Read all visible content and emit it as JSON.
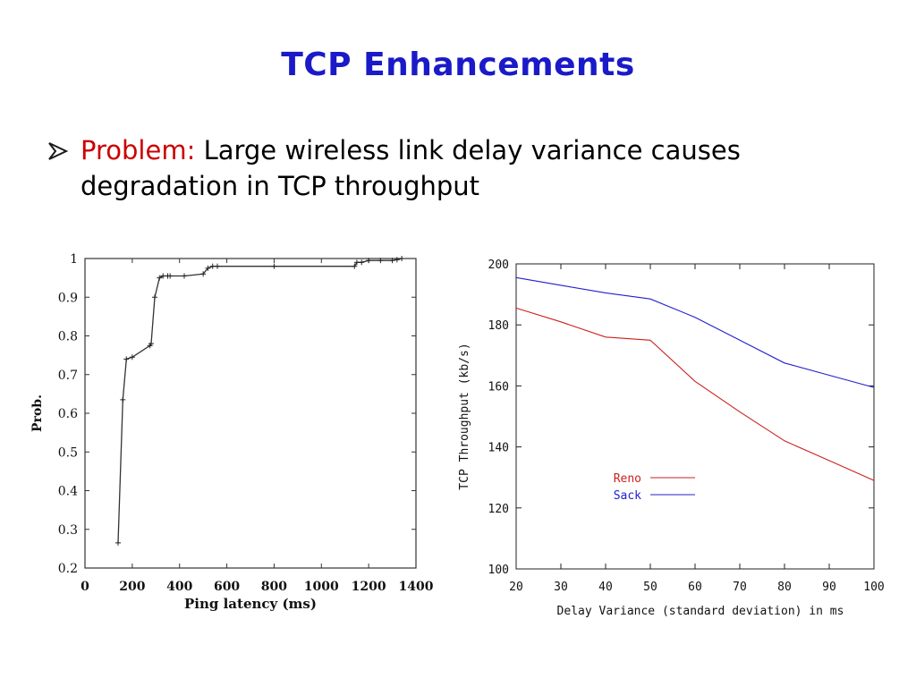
{
  "slide": {
    "title": "TCP Enhancements",
    "bullet": {
      "label": "Problem:",
      "text": "Large wireless link delay variance causes degradation in TCP throughput"
    }
  },
  "colors": {
    "title": "#1a1ac8",
    "problem_label": "#cc0000",
    "reno": "#cc2020",
    "sack": "#2020cc"
  },
  "chart_data": [
    {
      "type": "line",
      "xlabel": "Ping latency (ms)",
      "ylabel": "Prob.",
      "xlim": [
        0,
        1400
      ],
      "ylim": [
        0.2,
        1
      ],
      "xticks": [
        "0",
        "200",
        "400",
        "600",
        "800",
        "1000",
        "1200",
        "1400"
      ],
      "yticks": [
        "0.2",
        "0.3",
        "0.4",
        "0.5",
        "0.6",
        "0.7",
        "0.8",
        "0.9",
        "1"
      ],
      "grid": false,
      "series": [
        {
          "points": [
            [
              140,
              0.265
            ],
            [
              160,
              0.635
            ],
            [
              175,
              0.74
            ],
            [
              200,
              0.745
            ],
            [
              275,
              0.775
            ],
            [
              280,
              0.78
            ],
            [
              295,
              0.9
            ],
            [
              315,
              0.95
            ],
            [
              330,
              0.955
            ],
            [
              350,
              0.955
            ],
            [
              360,
              0.955
            ],
            [
              420,
              0.955
            ],
            [
              500,
              0.96
            ],
            [
              520,
              0.975
            ],
            [
              540,
              0.98
            ],
            [
              560,
              0.98
            ],
            [
              800,
              0.98
            ],
            [
              1140,
              0.98
            ],
            [
              1150,
              0.99
            ],
            [
              1170,
              0.99
            ],
            [
              1200,
              0.995
            ],
            [
              1250,
              0.995
            ],
            [
              1300,
              0.995
            ],
            [
              1320,
              0.997
            ],
            [
              1340,
              1.0
            ]
          ]
        }
      ]
    },
    {
      "type": "line",
      "xlabel": "Delay Variance (standard deviation) in ms",
      "ylabel": "TCP Throughput (kb/s)",
      "xlim": [
        20,
        100
      ],
      "ylim": [
        100,
        200
      ],
      "xticks": [
        "20",
        "30",
        "40",
        "50",
        "60",
        "70",
        "80",
        "90",
        "100"
      ],
      "yticks": [
        "100",
        "120",
        "140",
        "160",
        "180",
        "200"
      ],
      "grid": false,
      "legend": "center",
      "series": [
        {
          "name": "Reno",
          "x": [
            20,
            30,
            40,
            50,
            60,
            70,
            80,
            90,
            100
          ],
          "values": [
            185.5,
            181,
            176,
            175,
            161.5,
            151.5,
            142,
            135.5,
            129
          ]
        },
        {
          "name": "Sack",
          "x": [
            20,
            30,
            40,
            50,
            60,
            70,
            80,
            90,
            100
          ],
          "values": [
            195.5,
            193,
            190.5,
            188.5,
            182.5,
            175,
            167.5,
            163.5,
            159.5
          ]
        }
      ]
    }
  ]
}
